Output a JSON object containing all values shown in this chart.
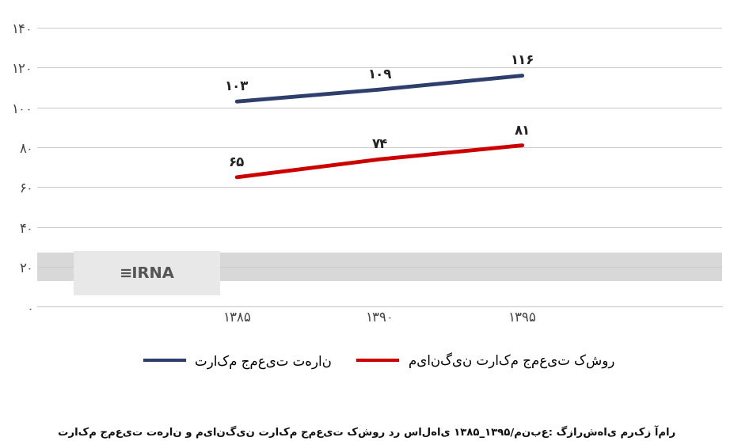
{
  "years": [
    1385,
    1390,
    1395
  ],
  "years_persian": [
    "۱۳۸۵",
    "۱۳۹۰",
    "۱۳۹۵"
  ],
  "tehran_values": [
    103,
    109,
    116
  ],
  "tehran_labels": [
    "۱۰۳",
    "۱۰۹",
    "۱۱۶"
  ],
  "country_values": [
    65,
    74,
    81
  ],
  "country_labels": [
    "۶۵",
    "۷۴",
    "۸۱"
  ],
  "tehran_color": "#2e3f6e",
  "country_color": "#cc0000",
  "yticks": [
    0,
    20,
    40,
    60,
    80,
    100,
    120,
    140
  ],
  "ytick_labels": [
    "۰",
    "۲۰",
    "۴۰",
    "۶۰",
    "۸۰",
    "۱۰۰",
    "۱۲۰",
    "۱۴۰"
  ],
  "legend_tehran": "تراکم جمعیت تهران",
  "legend_country": "میانگین تراکم جمعیت کشور",
  "caption": "تراکم جمعیت تهران و میانگین تراکم جمعیت کشور در سال‌های ۱۳۸۵_۱۳۹۵/منبع: گزارش‌های مرکز آمار",
  "ylim": [
    0,
    148
  ],
  "xlim": [
    1378,
    1402
  ],
  "background_color": "#ffffff",
  "grid_color": "#cccccc",
  "line_width": 3.5
}
